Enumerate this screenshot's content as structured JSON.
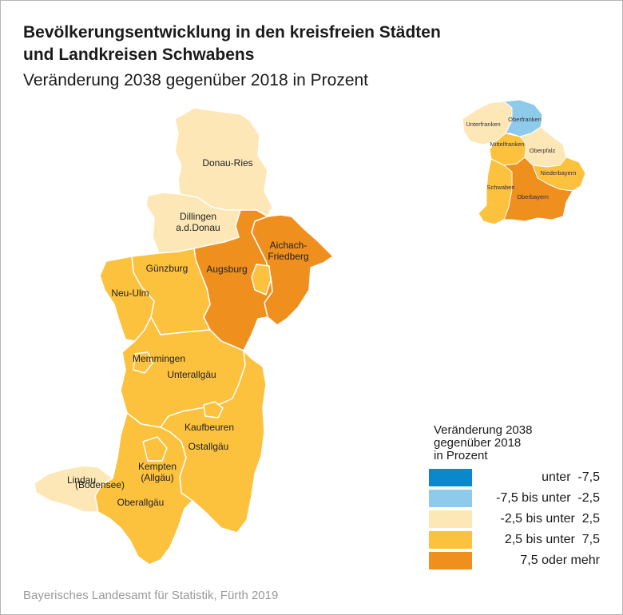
{
  "title_lines": [
    "Bevölkerungsentwicklung in den kreisfreien Städten",
    "und Landkreisen Schwabens"
  ],
  "subtitle": "Veränderung 2038 gegenüber 2018 in Prozent",
  "colors": {
    "class_1": "#0a88cc",
    "class_2": "#8ecbea",
    "class_3": "#fde7b6",
    "class_4": "#fcc13d",
    "class_5": "#ee8f1e",
    "border": "#ffffff"
  },
  "legend": {
    "title_lines": [
      "Veränderung 2038",
      "gegenüber 2018",
      "in Prozent"
    ],
    "classes": [
      {
        "label": "unter  -7,5",
        "color": "#0a88cc"
      },
      {
        "label": "-7,5 bis unter  -2,5",
        "color": "#8ecbea"
      },
      {
        "label": "-2,5 bis unter  2,5",
        "color": "#fde7b6"
      },
      {
        "label": "2,5 bis unter  7,5",
        "color": "#fcc13d"
      },
      {
        "label": "7,5 oder mehr",
        "color": "#ee8f1e"
      }
    ]
  },
  "regions": {
    "donau_ries": {
      "name": "Donau-Ries",
      "class": 3
    },
    "dillingen": {
      "name_lines": [
        "Dillingen",
        "a.d.Donau"
      ],
      "class": 3
    },
    "aichach": {
      "name_lines": [
        "Aichach-",
        "Friedberg"
      ],
      "class": 5
    },
    "augsburg_lk": {
      "name": "Augsburg",
      "class": 5
    },
    "guenzburg": {
      "name": "Günzburg",
      "class": 4
    },
    "neu_ulm": {
      "name": "Neu-Ulm",
      "class": 4
    },
    "memmingen": {
      "name": "Memmingen",
      "class": 4
    },
    "unterallgaeu": {
      "name": "Unterallgäu",
      "class": 4
    },
    "kaufbeuren": {
      "name": "Kaufbeuren",
      "class": 4
    },
    "ostallgaeu": {
      "name": "Ostallgäu",
      "class": 4
    },
    "kempten": {
      "name_lines": [
        "Kempten",
        "(Allgäu)"
      ],
      "class": 4
    },
    "oberallgaeu": {
      "name": "Oberallgäu",
      "class": 4
    },
    "lindau": {
      "name_lines": [
        "Lindau",
        "(Bodensee)"
      ],
      "class": 3
    }
  },
  "inset": {
    "unterfranken": {
      "name": "Unterfranken",
      "class": 3
    },
    "oberfranken": {
      "name": "Oberfranken",
      "class": 2
    },
    "mittelfranken": {
      "name": "Mittelfranken",
      "class": 4
    },
    "oberpfalz": {
      "name": "Oberpfalz",
      "class": 3
    },
    "niederbayern": {
      "name": "Niederbayern",
      "class": 4
    },
    "schwaben": {
      "name": "Schwaben",
      "class": 4
    },
    "oberbayern": {
      "name": "Oberbayern",
      "class": 5
    }
  },
  "source": "Bayerisches Landesamt für Statistik, Fürth 2019"
}
